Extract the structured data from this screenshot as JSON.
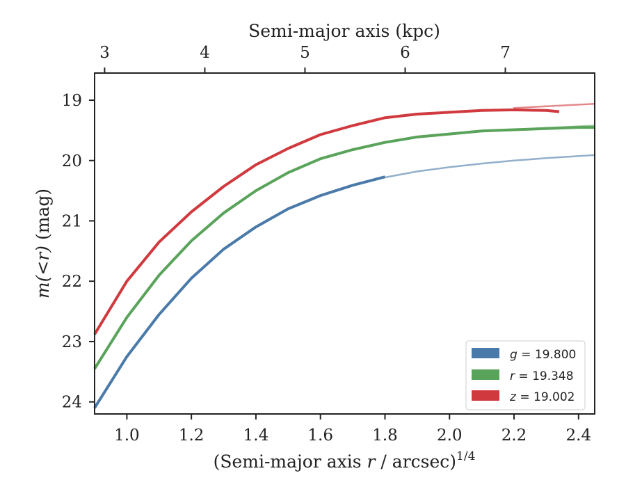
{
  "chart_data": {
    "type": "line",
    "xlabel_prefix": "(Semi-major axis ",
    "xlabel_var": "r",
    "xlabel_suffix": " / arcsec)",
    "xlabel_power": "1/4",
    "top_xlabel": "Semi-major axis (kpc)",
    "ylabel_var": "m(<r)",
    "ylabel_unit": " (mag)",
    "xlim": [
      0.9,
      2.45
    ],
    "ylim": [
      24.2,
      18.55
    ],
    "y_inverted": true,
    "x_ticks": [
      "1.0",
      "1.2",
      "1.4",
      "1.6",
      "1.8",
      "2.0",
      "2.2",
      "2.4"
    ],
    "x_tick_values": [
      1.0,
      1.2,
      1.4,
      1.6,
      1.8,
      2.0,
      2.2,
      2.4
    ],
    "y_ticks": [
      "19",
      "20",
      "21",
      "22",
      "23",
      "24"
    ],
    "y_tick_values": [
      19,
      20,
      21,
      22,
      23,
      24
    ],
    "top_ticks": [
      "3",
      "4",
      "5",
      "6",
      "7"
    ],
    "top_tick_values": [
      3,
      4,
      5,
      6,
      7
    ],
    "legend_position": "lower-right",
    "grid": false,
    "series": [
      {
        "name": "g = 19.800",
        "band": "g",
        "value": "19.800",
        "color": "#4a7aa9",
        "data": [
          [
            0.9,
            24.1
          ],
          [
            1.0,
            23.25
          ],
          [
            1.1,
            22.55
          ],
          [
            1.2,
            21.95
          ],
          [
            1.3,
            21.47
          ],
          [
            1.4,
            21.1
          ],
          [
            1.5,
            20.8
          ],
          [
            1.6,
            20.58
          ],
          [
            1.7,
            20.41
          ],
          [
            1.8,
            20.27
          ]
        ],
        "model": [
          [
            1.8,
            20.28
          ],
          [
            1.9,
            20.18
          ],
          [
            2.0,
            20.11
          ],
          [
            2.1,
            20.05
          ],
          [
            2.2,
            20.0
          ],
          [
            2.3,
            19.96
          ],
          [
            2.45,
            19.91
          ]
        ]
      },
      {
        "name": "r = 19.348",
        "band": "r",
        "value": "19.348",
        "color": "#5aa35a",
        "data": [
          [
            0.9,
            23.45
          ],
          [
            1.0,
            22.6
          ],
          [
            1.1,
            21.9
          ],
          [
            1.2,
            21.33
          ],
          [
            1.3,
            20.87
          ],
          [
            1.4,
            20.5
          ],
          [
            1.5,
            20.2
          ],
          [
            1.6,
            19.97
          ],
          [
            1.7,
            19.82
          ],
          [
            1.8,
            19.7
          ],
          [
            1.9,
            19.61
          ],
          [
            2.0,
            19.56
          ],
          [
            2.1,
            19.51
          ],
          [
            2.2,
            19.49
          ],
          [
            2.3,
            19.47
          ],
          [
            2.4,
            19.45
          ],
          [
            2.45,
            19.45
          ]
        ],
        "model": [
          [
            2.2,
            19.49
          ],
          [
            2.3,
            19.46
          ],
          [
            2.45,
            19.42
          ]
        ]
      },
      {
        "name": "z = 19.002",
        "band": "z",
        "value": "19.002",
        "color": "#d03a3f",
        "data": [
          [
            0.9,
            22.88
          ],
          [
            1.0,
            22.0
          ],
          [
            1.1,
            21.35
          ],
          [
            1.2,
            20.85
          ],
          [
            1.3,
            20.43
          ],
          [
            1.4,
            20.07
          ],
          [
            1.5,
            19.8
          ],
          [
            1.6,
            19.57
          ],
          [
            1.7,
            19.42
          ],
          [
            1.8,
            19.29
          ],
          [
            1.9,
            19.23
          ],
          [
            2.0,
            19.2
          ],
          [
            2.1,
            19.17
          ],
          [
            2.2,
            19.16
          ],
          [
            2.3,
            19.17
          ],
          [
            2.34,
            19.19
          ]
        ],
        "model": [
          [
            2.2,
            19.13
          ],
          [
            2.3,
            19.1
          ],
          [
            2.45,
            19.06
          ]
        ]
      }
    ]
  }
}
